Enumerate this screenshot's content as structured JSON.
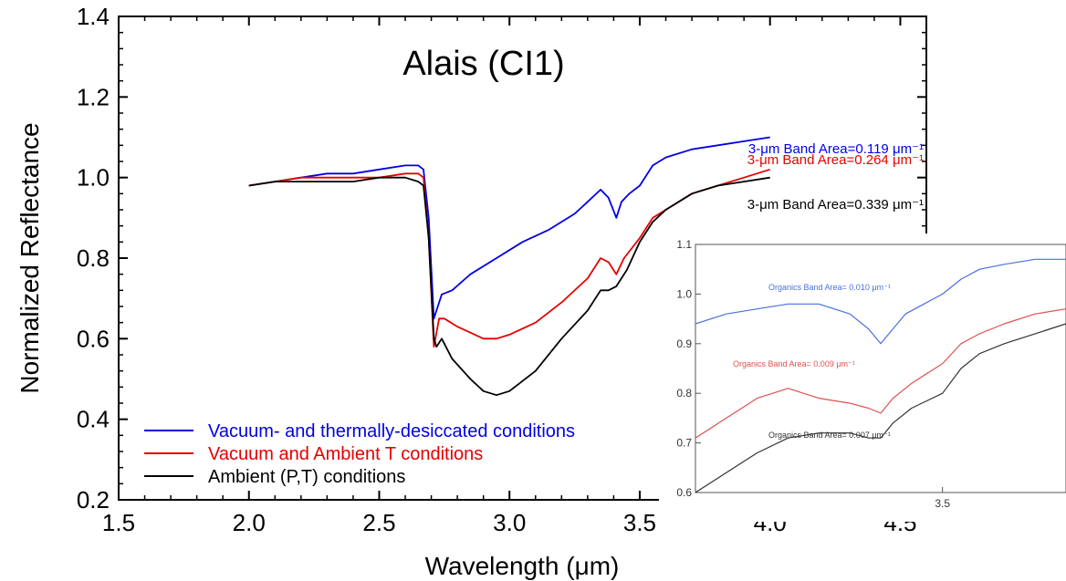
{
  "chart_data": {
    "type": "line",
    "title": "Alais (CI1)",
    "xlabel": "Wavelength (μm)",
    "ylabel": "Normalized Reflectance",
    "xlim": [
      1.5,
      4.6
    ],
    "ylim": [
      0.2,
      1.4
    ],
    "xticks": [
      "1.5",
      "2.0",
      "2.5",
      "3.0",
      "3.5",
      "4.0",
      "4.5"
    ],
    "yticks": [
      "0.2",
      "0.4",
      "0.6",
      "0.8",
      "1.0",
      "1.2",
      "1.4"
    ],
    "legend_position": "bottom-left",
    "series": [
      {
        "name": "Vacuum- and thermally-desiccated conditions",
        "color": "#0000e6",
        "band_label": "3-μm Band Area=0.119 μm⁻¹",
        "x": [
          2.0,
          2.1,
          2.2,
          2.3,
          2.4,
          2.5,
          2.6,
          2.65,
          2.67,
          2.69,
          2.71,
          2.72,
          2.74,
          2.78,
          2.85,
          2.95,
          3.05,
          3.15,
          3.25,
          3.3,
          3.35,
          3.38,
          3.41,
          3.43,
          3.46,
          3.5,
          3.55,
          3.6,
          3.7,
          3.8,
          3.9,
          4.0
        ],
        "y": [
          0.98,
          0.99,
          1.0,
          1.01,
          1.01,
          1.02,
          1.03,
          1.03,
          1.02,
          0.9,
          0.65,
          0.67,
          0.71,
          0.72,
          0.76,
          0.8,
          0.84,
          0.87,
          0.91,
          0.94,
          0.97,
          0.95,
          0.9,
          0.94,
          0.96,
          0.98,
          1.03,
          1.05,
          1.07,
          1.08,
          1.09,
          1.1
        ]
      },
      {
        "name": "Vacuum and Ambient T conditions",
        "color": "#e60000",
        "band_label": "3-μm Band Area=0.264 μm⁻¹",
        "x": [
          2.0,
          2.1,
          2.2,
          2.3,
          2.4,
          2.5,
          2.6,
          2.65,
          2.67,
          2.69,
          2.71,
          2.73,
          2.75,
          2.8,
          2.9,
          2.95,
          3.0,
          3.1,
          3.2,
          3.3,
          3.35,
          3.38,
          3.41,
          3.44,
          3.5,
          3.55,
          3.6,
          3.7,
          3.8,
          3.9,
          4.0
        ],
        "y": [
          0.98,
          0.99,
          1.0,
          1.0,
          1.0,
          1.0,
          1.01,
          1.01,
          1.0,
          0.85,
          0.58,
          0.65,
          0.65,
          0.63,
          0.6,
          0.6,
          0.61,
          0.64,
          0.69,
          0.75,
          0.8,
          0.79,
          0.76,
          0.8,
          0.85,
          0.9,
          0.92,
          0.96,
          0.98,
          1.0,
          1.02
        ]
      },
      {
        "name": "Ambient (P,T) conditions",
        "color": "#000000",
        "band_label": "3-μm Band Area=0.339 μm⁻¹",
        "x": [
          2.0,
          2.1,
          2.2,
          2.3,
          2.4,
          2.5,
          2.6,
          2.65,
          2.67,
          2.69,
          2.71,
          2.72,
          2.74,
          2.78,
          2.85,
          2.9,
          2.95,
          3.0,
          3.1,
          3.2,
          3.3,
          3.35,
          3.38,
          3.41,
          3.45,
          3.5,
          3.55,
          3.6,
          3.7,
          3.8,
          3.9,
          4.0
        ],
        "y": [
          0.98,
          0.99,
          0.99,
          0.99,
          0.99,
          1.0,
          1.0,
          0.99,
          0.98,
          0.85,
          0.6,
          0.58,
          0.6,
          0.55,
          0.5,
          0.47,
          0.46,
          0.47,
          0.52,
          0.6,
          0.67,
          0.72,
          0.72,
          0.73,
          0.77,
          0.84,
          0.89,
          0.92,
          0.96,
          0.98,
          0.99,
          1.0
        ]
      }
    ],
    "inset": {
      "xlim": [
        3.1,
        3.7
      ],
      "ylim": [
        0.6,
        1.1
      ],
      "xticks": [
        "3.5"
      ],
      "yticks": [
        "0.6",
        "0.7",
        "0.8",
        "0.9",
        "1.0",
        "1.1"
      ],
      "series": [
        {
          "label": "Organics Band Area= 0.010 μm⁻¹",
          "color": "#4a6fe0",
          "x": [
            3.1,
            3.15,
            3.2,
            3.25,
            3.3,
            3.35,
            3.38,
            3.4,
            3.42,
            3.44,
            3.47,
            3.5,
            3.53,
            3.56,
            3.6,
            3.65,
            3.7
          ],
          "y": [
            0.94,
            0.96,
            0.97,
            0.98,
            0.98,
            0.96,
            0.93,
            0.9,
            0.93,
            0.96,
            0.98,
            1.0,
            1.03,
            1.05,
            1.06,
            1.07,
            1.07
          ]
        },
        {
          "label": "Organics Band Area= 0.009 μm⁻¹",
          "color": "#e05050",
          "x": [
            3.1,
            3.15,
            3.2,
            3.25,
            3.3,
            3.35,
            3.38,
            3.4,
            3.42,
            3.45,
            3.5,
            3.53,
            3.56,
            3.6,
            3.65,
            3.7
          ],
          "y": [
            0.71,
            0.75,
            0.79,
            0.81,
            0.79,
            0.78,
            0.77,
            0.76,
            0.79,
            0.82,
            0.86,
            0.9,
            0.92,
            0.94,
            0.96,
            0.97
          ]
        },
        {
          "label": "Organics Band Area= 0.007 μm⁻¹",
          "color": "#333333",
          "x": [
            3.1,
            3.15,
            3.2,
            3.25,
            3.3,
            3.35,
            3.38,
            3.4,
            3.42,
            3.45,
            3.5,
            3.53,
            3.56,
            3.6,
            3.65,
            3.7
          ],
          "y": [
            0.6,
            0.64,
            0.68,
            0.71,
            0.72,
            0.72,
            0.71,
            0.71,
            0.74,
            0.77,
            0.8,
            0.85,
            0.88,
            0.9,
            0.92,
            0.94
          ]
        }
      ]
    }
  }
}
